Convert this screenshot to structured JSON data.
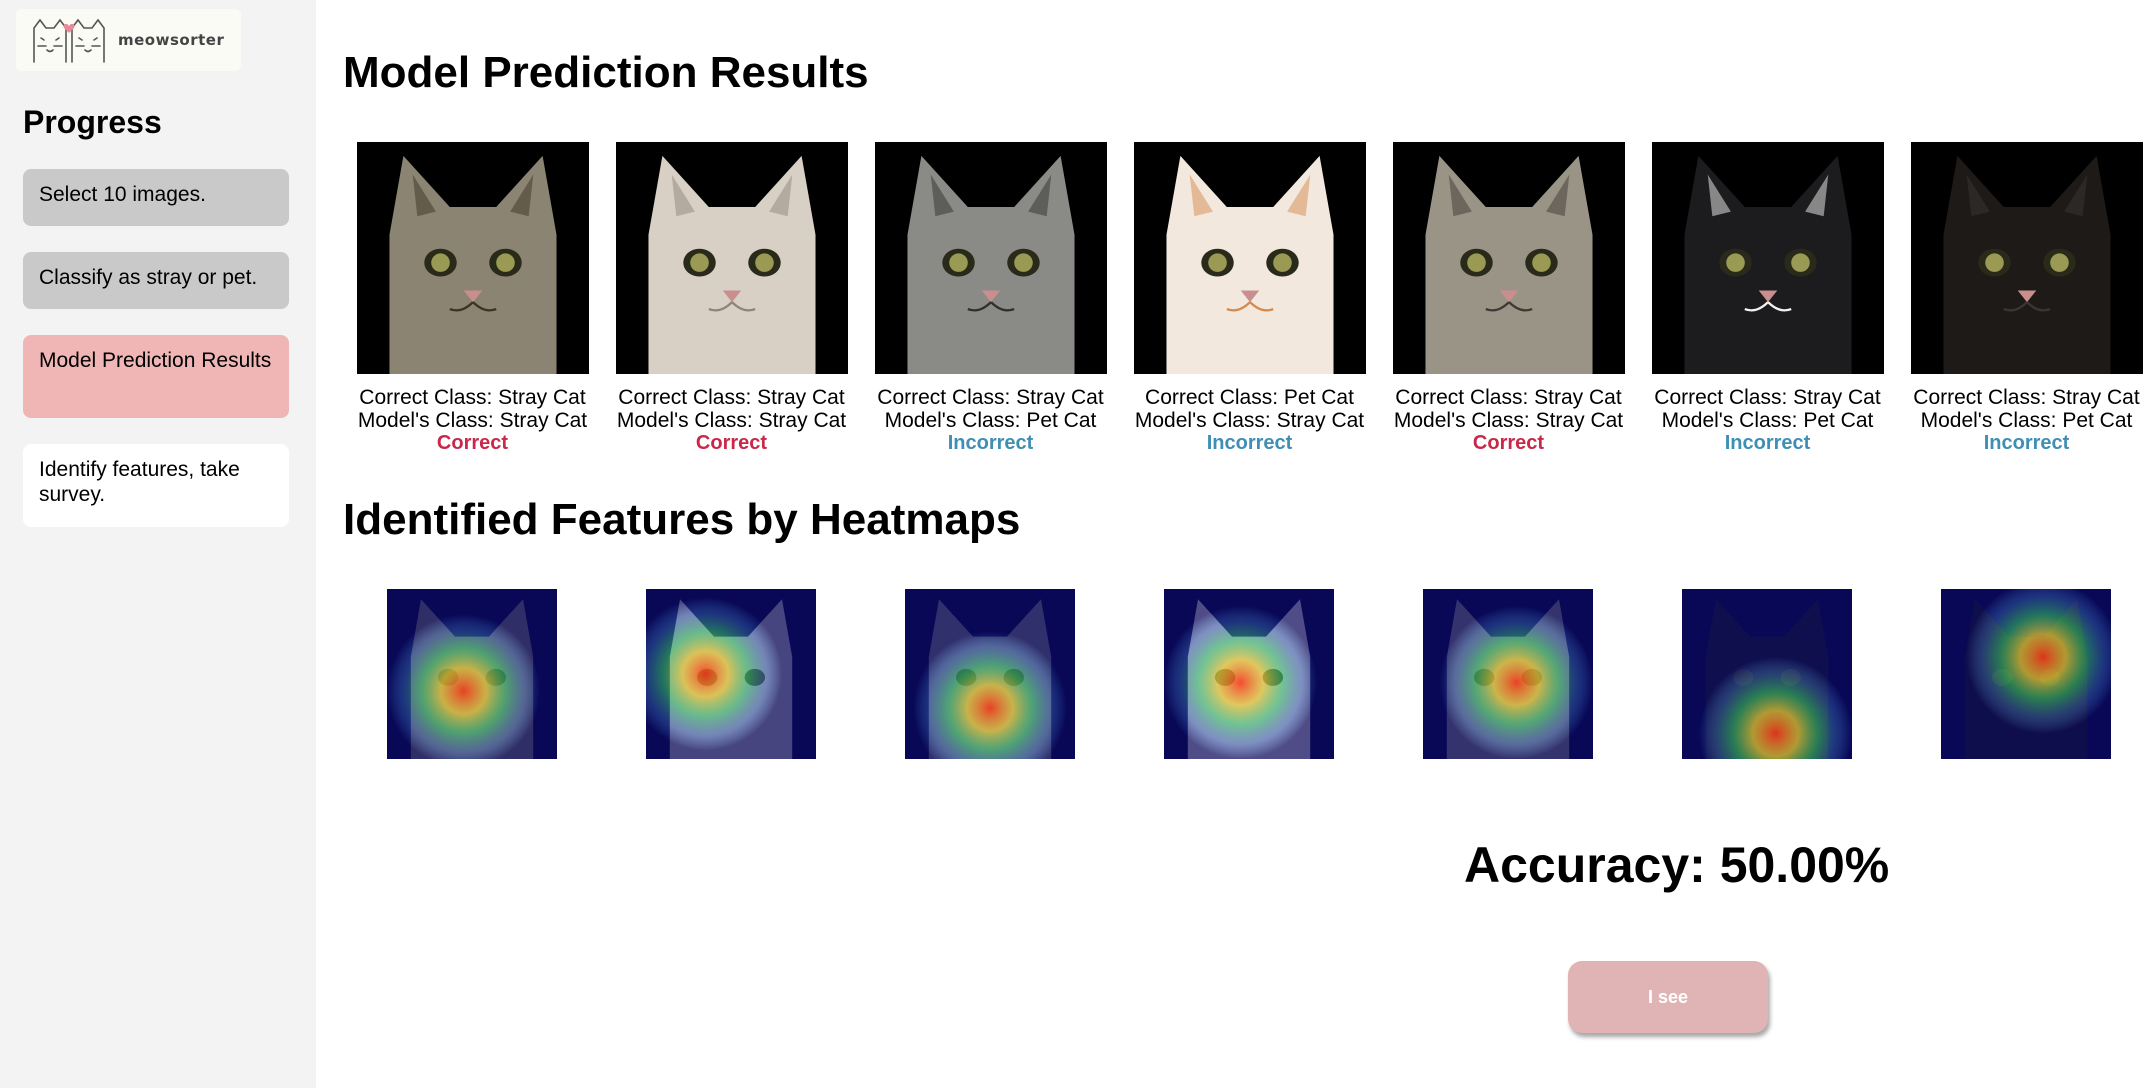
{
  "logo": {
    "text": "meowsorter",
    "icon": "cats-logo-icon"
  },
  "sidebar": {
    "title": "Progress",
    "steps": [
      {
        "label": "Select 10 images.",
        "state": "done"
      },
      {
        "label": "Classify as stray or pet.",
        "state": "done"
      },
      {
        "label": "Model Prediction Results",
        "state": "active"
      },
      {
        "label": "Identify features, take survey.",
        "state": "pending"
      }
    ]
  },
  "results": {
    "title": "Model Prediction Results",
    "items": [
      {
        "correct": "Correct Class: Stray Cat",
        "model": "Model's Class: Stray Cat",
        "result": "Correct",
        "is_correct": true,
        "fur": "#8c8472",
        "dark": "#3a3428"
      },
      {
        "correct": "Correct Class: Stray Cat",
        "model": "Model's Class: Stray Cat",
        "result": "Correct",
        "is_correct": true,
        "fur": "#d8d0c4",
        "dark": "#8e857a"
      },
      {
        "correct": "Correct Class: Stray Cat",
        "model": "Model's Class: Pet Cat",
        "result": "Incorrect",
        "is_correct": false,
        "fur": "#8a8a86",
        "dark": "#2f2f2d"
      },
      {
        "correct": "Correct Class: Pet Cat",
        "model": "Model's Class: Stray Cat",
        "result": "Incorrect",
        "is_correct": false,
        "fur": "#f2e8de",
        "dark": "#d48a4e"
      },
      {
        "correct": "Correct Class: Stray Cat",
        "model": "Model's Class: Stray Cat",
        "result": "Correct",
        "is_correct": true,
        "fur": "#9a9486",
        "dark": "#3c3a34"
      },
      {
        "correct": "Correct Class: Stray Cat",
        "model": "Model's Class: Pet Cat",
        "result": "Incorrect",
        "is_correct": false,
        "fur": "#1c1c1e",
        "dark": "#f2f2f2"
      },
      {
        "correct": "Correct Class: Stray Cat",
        "model": "Model's Class: Pet Cat",
        "result": "Incorrect",
        "is_correct": false,
        "fur": "#1e1a18",
        "dark": "#3a3634"
      }
    ]
  },
  "heatmaps": {
    "title": "Identified Features by Heatmaps"
  },
  "accuracy": "Accuracy: 50.00%",
  "button": {
    "label": "I see"
  }
}
